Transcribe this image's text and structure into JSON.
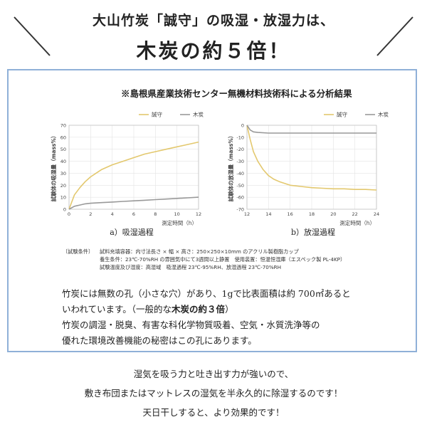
{
  "header": {
    "line1": "大山竹炭「誠守」の吸湿・放湿力は、",
    "line2": "木炭の約５倍！"
  },
  "source_note": "※島根県産業技術センター無機材料技術科による分析結果",
  "chart_data": [
    {
      "type": "line",
      "caption": "a）吸湿過程",
      "ylabel": "試験体の吸湿量（mass%）",
      "xlabel": "測定時間（h）",
      "xlim": [
        0,
        12
      ],
      "ylim": [
        0,
        70
      ],
      "xticks": [
        0,
        2,
        4,
        6,
        8,
        10,
        12
      ],
      "yticks": [
        0,
        10,
        20,
        30,
        40,
        50,
        60,
        70
      ],
      "legend_position": "top-center",
      "series": [
        {
          "name": "誠守",
          "color": "#e3c86e",
          "x": [
            0,
            0.5,
            1,
            1.5,
            2,
            2.5,
            3,
            4,
            5,
            6,
            7,
            8,
            9,
            10,
            11,
            12
          ],
          "values": [
            0,
            12,
            18,
            23,
            27,
            30,
            33,
            37,
            40,
            43,
            46,
            48,
            50,
            52,
            54,
            56
          ]
        },
        {
          "name": "木炭",
          "color": "#999999",
          "x": [
            0,
            0.5,
            1,
            1.5,
            2,
            3,
            4,
            5,
            6,
            7,
            8,
            9,
            10,
            11,
            12
          ],
          "values": [
            0,
            2.5,
            3.5,
            4.5,
            5,
            5.5,
            6,
            6.5,
            7,
            7.5,
            8,
            8.5,
            9,
            9.5,
            10
          ]
        }
      ]
    },
    {
      "type": "line",
      "caption": "b）放湿過程",
      "ylabel": "試験体の放湿量（mass%）",
      "xlabel": "測定時間（h）",
      "xlim": [
        12,
        24
      ],
      "ylim": [
        -70,
        0
      ],
      "xticks": [
        12,
        14,
        16,
        18,
        20,
        22,
        24
      ],
      "yticks": [
        0,
        -10,
        -20,
        -30,
        -40,
        -50,
        -60,
        -70
      ],
      "legend_position": "top-right",
      "series": [
        {
          "name": "誠守",
          "color": "#e3c86e",
          "x": [
            12,
            12.3,
            12.6,
            13,
            13.5,
            14,
            14.5,
            15,
            16,
            17,
            18,
            19,
            20,
            21,
            22,
            23,
            24
          ],
          "values": [
            0,
            -12,
            -22,
            -30,
            -37,
            -42,
            -45,
            -47,
            -50,
            -51,
            -52,
            -52.5,
            -53,
            -53,
            -53.5,
            -53.5,
            -54
          ]
        },
        {
          "name": "木炭",
          "color": "#999999",
          "x": [
            12,
            12.3,
            12.6,
            13,
            14,
            16,
            18,
            20,
            22,
            24
          ],
          "values": [
            0,
            -4,
            -5.5,
            -6,
            -6.5,
            -6.5,
            -6.5,
            -6.5,
            -6.5,
            -6.5
          ]
        }
      ]
    }
  ],
  "conditions": {
    "title": "〔試験条件〕",
    "rows": [
      {
        "label": "",
        "text": "試料充填容器：内寸法長さ × 幅 × 高さ：250×250×10mm のアクリル製樹脂カップ"
      },
      {
        "label": "",
        "text": "養生条件：23℃-70%RH の雰囲気中にて3週間以上静置　使用装置：恒温恒湿庫（エスペック製 PL-4KP）"
      },
      {
        "label": "",
        "text": "試験温度及び湿度：高湿域　吸湿過程 23℃-95%RH、放湿過程 23℃-70%RH"
      }
    ]
  },
  "body": {
    "line1": "竹炭には無数の孔（小さな穴）があり、1gで比表面積は約 700㎡あると",
    "line2_a": "いわれています。（一般的な",
    "line2_b": "木炭の約３倍",
    "line2_c": "）",
    "line3": "竹炭の調湿・脱臭、有害な科化学物質吸着、空気・水質洗浄等の",
    "line4": "優れた環境改善機能の秘密はこの孔にあります。"
  },
  "footer": {
    "line1": "湿気を吸う力と吐き出す力が強いので、",
    "line2": "敷き布団またはマットレスの湿気を半永久的に除湿するのです！",
    "line3": "天日干しすると、より効果的です！"
  }
}
